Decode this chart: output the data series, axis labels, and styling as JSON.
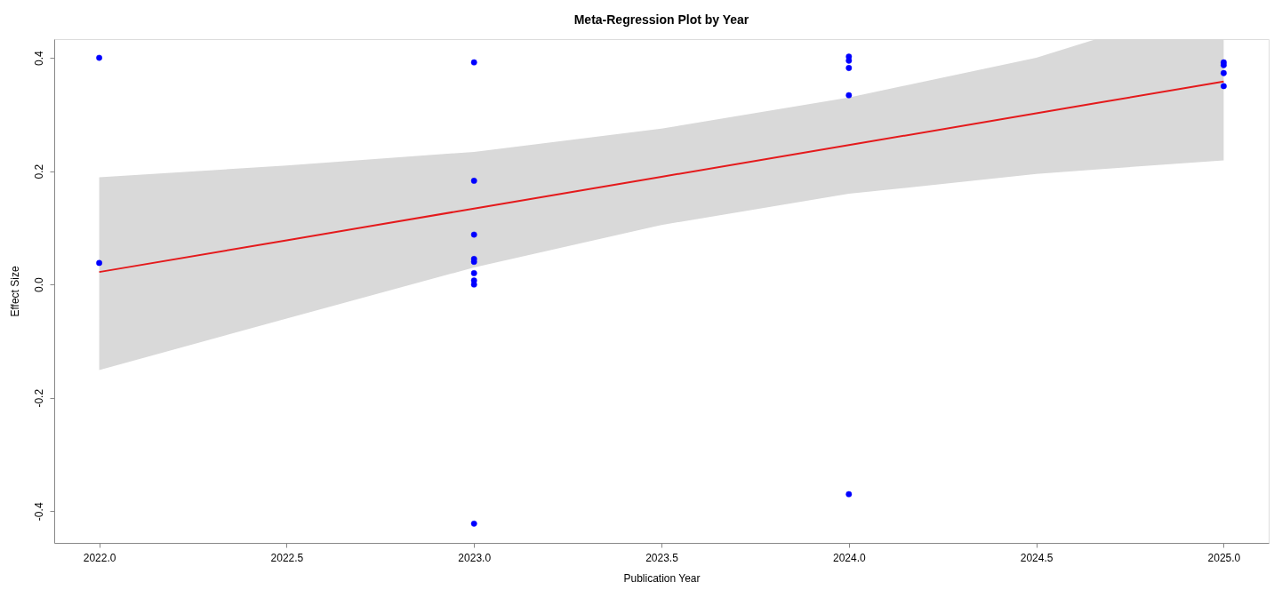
{
  "chart_data": {
    "type": "scatter",
    "title": "Meta-Regression Plot by Year",
    "xlabel": "Publication Year",
    "ylabel": "Effect Size",
    "xlim": [
      2021.88,
      2025.12
    ],
    "ylim": [
      -0.456,
      0.433
    ],
    "xticks": [
      {
        "value": 2022,
        "label": "2022.0"
      },
      {
        "value": 2022.5,
        "label": "2022.5"
      },
      {
        "value": 2023,
        "label": "2023.0"
      },
      {
        "value": 2023.5,
        "label": "2023.5"
      },
      {
        "value": 2024,
        "label": "2024.0"
      },
      {
        "value": 2024.5,
        "label": "2024.5"
      },
      {
        "value": 2025,
        "label": "2025.0"
      }
    ],
    "yticks": [
      -0.4,
      -0.2,
      {
        "value": 0,
        "label": "0.0"
      },
      0.2,
      0.4
    ],
    "grid": false,
    "series": [
      {
        "type": "line",
        "color": "#e41a1c",
        "x": [
          2022,
          2022.5,
          2023,
          2023.5,
          2024,
          2024.5,
          2024.66,
          2025
        ],
        "values": [
          0.022,
          0.078,
          0.134,
          0.19,
          0.246,
          0.302,
          0.32,
          0.358
        ],
        "lower": [
          -0.151,
          -0.06,
          0.03,
          0.105,
          0.16,
          0.195,
          0.203,
          0.219
        ],
        "upper": [
          0.189,
          0.21,
          0.234,
          0.275,
          0.33,
          0.4,
          0.433,
          0.433
        ],
        "line_style": "solid"
      },
      {
        "color": "#0000ff",
        "marker": "circle",
        "x": [
          2022,
          2022,
          2023,
          2023,
          2023,
          2023,
          2023,
          2023,
          2023,
          2023,
          2023,
          2024,
          2024,
          2024,
          2024,
          2024,
          2025,
          2025,
          2025,
          2025
        ],
        "values": [
          0.4,
          0.038,
          0.392,
          0.183,
          0.088,
          0.045,
          0.04,
          0.02,
          0.007,
          0.0,
          -0.422,
          0.402,
          0.395,
          0.382,
          0.334,
          -0.37,
          0.392,
          0.387,
          0.373,
          0.35
        ]
      }
    ]
  }
}
